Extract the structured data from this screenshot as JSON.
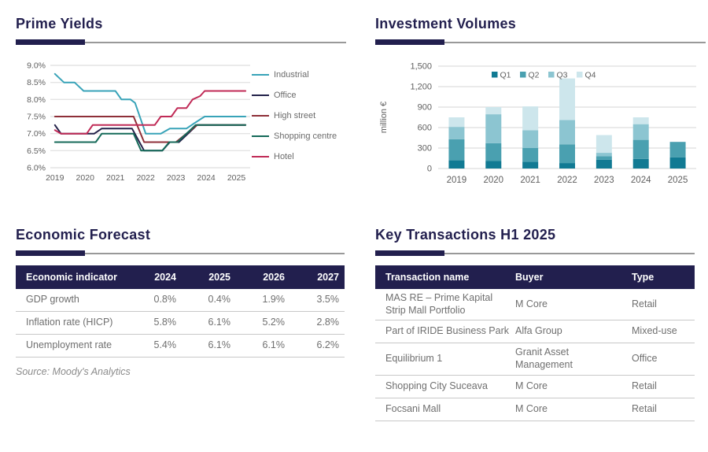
{
  "colors": {
    "navy": "#221f4e",
    "rule_line": "#999999",
    "grid": "#e4e4e4",
    "axis_text": "#5f5f5f",
    "table_text": "#6f6f6f",
    "separator": "#c8c8c8"
  },
  "chart_data": [
    {
      "name": "prime_yields",
      "type": "line",
      "title": "Prime Yields",
      "xlabel": "",
      "ylabel": "",
      "ylim": [
        6.0,
        9.0
      ],
      "xlim": [
        2018.85,
        2025.35
      ],
      "yticks": [
        9.0,
        8.5,
        8.0,
        7.5,
        7.0,
        6.5,
        6.0
      ],
      "ytick_labels": [
        "9.0%",
        "8.5%",
        "8.0%",
        "7.5%",
        "7.0%",
        "6.5%",
        "6.0%"
      ],
      "xticks": [
        2019,
        2020,
        2021,
        2022,
        2023,
        2024,
        2025
      ],
      "xtick_labels": [
        "2019",
        "2020",
        "2021",
        "2022",
        "2023",
        "2024",
        "2025"
      ],
      "grid": true,
      "legend_position": "right",
      "series": [
        {
          "name": "Industrial",
          "color": "#38a3b8",
          "points": [
            [
              2019,
              8.75
            ],
            [
              2019.3,
              8.5
            ],
            [
              2019.65,
              8.5
            ],
            [
              2019.95,
              8.25
            ],
            [
              2021.0,
              8.25
            ],
            [
              2021.2,
              8.0
            ],
            [
              2021.5,
              8.0
            ],
            [
              2021.65,
              7.9
            ],
            [
              2022.0,
              7.0
            ],
            [
              2022.5,
              7.0
            ],
            [
              2022.8,
              7.15
            ],
            [
              2023.35,
              7.15
            ],
            [
              2023.6,
              7.3
            ],
            [
              2023.95,
              7.5
            ],
            [
              2025.3,
              7.5
            ]
          ]
        },
        {
          "name": "Office",
          "color": "#23224a",
          "points": [
            [
              2019,
              7.25
            ],
            [
              2019.2,
              7.0
            ],
            [
              2020.3,
              7.0
            ],
            [
              2020.55,
              7.15
            ],
            [
              2021.55,
              7.15
            ],
            [
              2021.95,
              6.5
            ],
            [
              2022.55,
              6.5
            ],
            [
              2022.8,
              6.75
            ],
            [
              2023.1,
              6.75
            ],
            [
              2023.7,
              7.25
            ],
            [
              2025.3,
              7.25
            ]
          ]
        },
        {
          "name": "High street",
          "color": "#8e2f38",
          "points": [
            [
              2019,
              7.5
            ],
            [
              2021.6,
              7.5
            ],
            [
              2021.95,
              6.75
            ],
            [
              2023.0,
              6.75
            ],
            [
              2023.7,
              7.25
            ],
            [
              2025.3,
              7.25
            ]
          ]
        },
        {
          "name": "Shopping centre",
          "color": "#156a59",
          "points": [
            [
              2019,
              6.75
            ],
            [
              2020.35,
              6.75
            ],
            [
              2020.55,
              7.0
            ],
            [
              2021.6,
              7.0
            ],
            [
              2021.85,
              6.5
            ],
            [
              2022.55,
              6.5
            ],
            [
              2022.78,
              6.75
            ],
            [
              2023.05,
              6.75
            ],
            [
              2023.65,
              7.25
            ],
            [
              2025.3,
              7.25
            ]
          ]
        },
        {
          "name": "Hotel",
          "color": "#c02a56",
          "points": [
            [
              2019,
              7.1
            ],
            [
              2019.2,
              7.0
            ],
            [
              2020.05,
              7.0
            ],
            [
              2020.25,
              7.25
            ],
            [
              2022.3,
              7.25
            ],
            [
              2022.5,
              7.5
            ],
            [
              2022.85,
              7.5
            ],
            [
              2023.05,
              7.75
            ],
            [
              2023.35,
              7.75
            ],
            [
              2023.55,
              8.0
            ],
            [
              2023.8,
              8.1
            ],
            [
              2023.95,
              8.25
            ],
            [
              2025.3,
              8.25
            ]
          ]
        }
      ]
    },
    {
      "name": "investment_volumes",
      "type": "bar",
      "stacked": true,
      "title": "Investment Volumes",
      "xlabel": "",
      "ylabel": "million €",
      "ylim": [
        0,
        1500
      ],
      "yticks": [
        0,
        300,
        600,
        900,
        1200,
        1500
      ],
      "ytick_labels": [
        "0",
        "300",
        "600",
        "900",
        "1,200",
        "1,500"
      ],
      "categories": [
        "2019",
        "2020",
        "2021",
        "2022",
        "2023",
        "2024",
        "2025"
      ],
      "grid": true,
      "legend_position": "top",
      "series": [
        {
          "name": "Q1",
          "color": "#117a93",
          "values": [
            120,
            110,
            100,
            80,
            130,
            140,
            165
          ]
        },
        {
          "name": "Q2",
          "color": "#4aa0b0",
          "values": [
            310,
            260,
            200,
            275,
            50,
            280,
            225
          ]
        },
        {
          "name": "Q3",
          "color": "#8cc5d1",
          "values": [
            180,
            425,
            260,
            355,
            50,
            230,
            0
          ]
        },
        {
          "name": "Q4",
          "color": "#cde6ec",
          "values": [
            140,
            105,
            350,
            610,
            260,
            100,
            0
          ]
        }
      ]
    }
  ],
  "panels": {
    "economic_forecast": {
      "title": "Economic Forecast",
      "source": "Source: Moody's Analytics",
      "table": {
        "headers": [
          "Economic indicator",
          "2024",
          "2025",
          "2026",
          "2027"
        ],
        "rows": [
          [
            "GDP growth",
            "0.8%",
            "0.4%",
            "1.9%",
            "3.5%"
          ],
          [
            "Inflation rate (HICP)",
            "5.8%",
            "6.1%",
            "5.2%",
            "2.8%"
          ],
          [
            "Unemployment rate",
            "5.4%",
            "6.1%",
            "6.1%",
            "6.2%"
          ]
        ]
      }
    },
    "key_transactions": {
      "title": "Key Transactions H1 2025",
      "table": {
        "headers": [
          "Transaction name",
          "Buyer",
          "Type"
        ],
        "rows": [
          [
            "MAS RE – Prime Kapital Strip Mall Portfolio",
            "M Core",
            "Retail"
          ],
          [
            "Part of IRIDE Business Park",
            "Alfa Group",
            "Mixed-use"
          ],
          [
            "Equilibrium 1",
            "Granit Asset Management",
            "Office"
          ],
          [
            "Shopping City Suceava",
            "M Core",
            "Retail"
          ],
          [
            "Focsani Mall",
            "M Core",
            "Retail"
          ]
        ]
      }
    }
  }
}
